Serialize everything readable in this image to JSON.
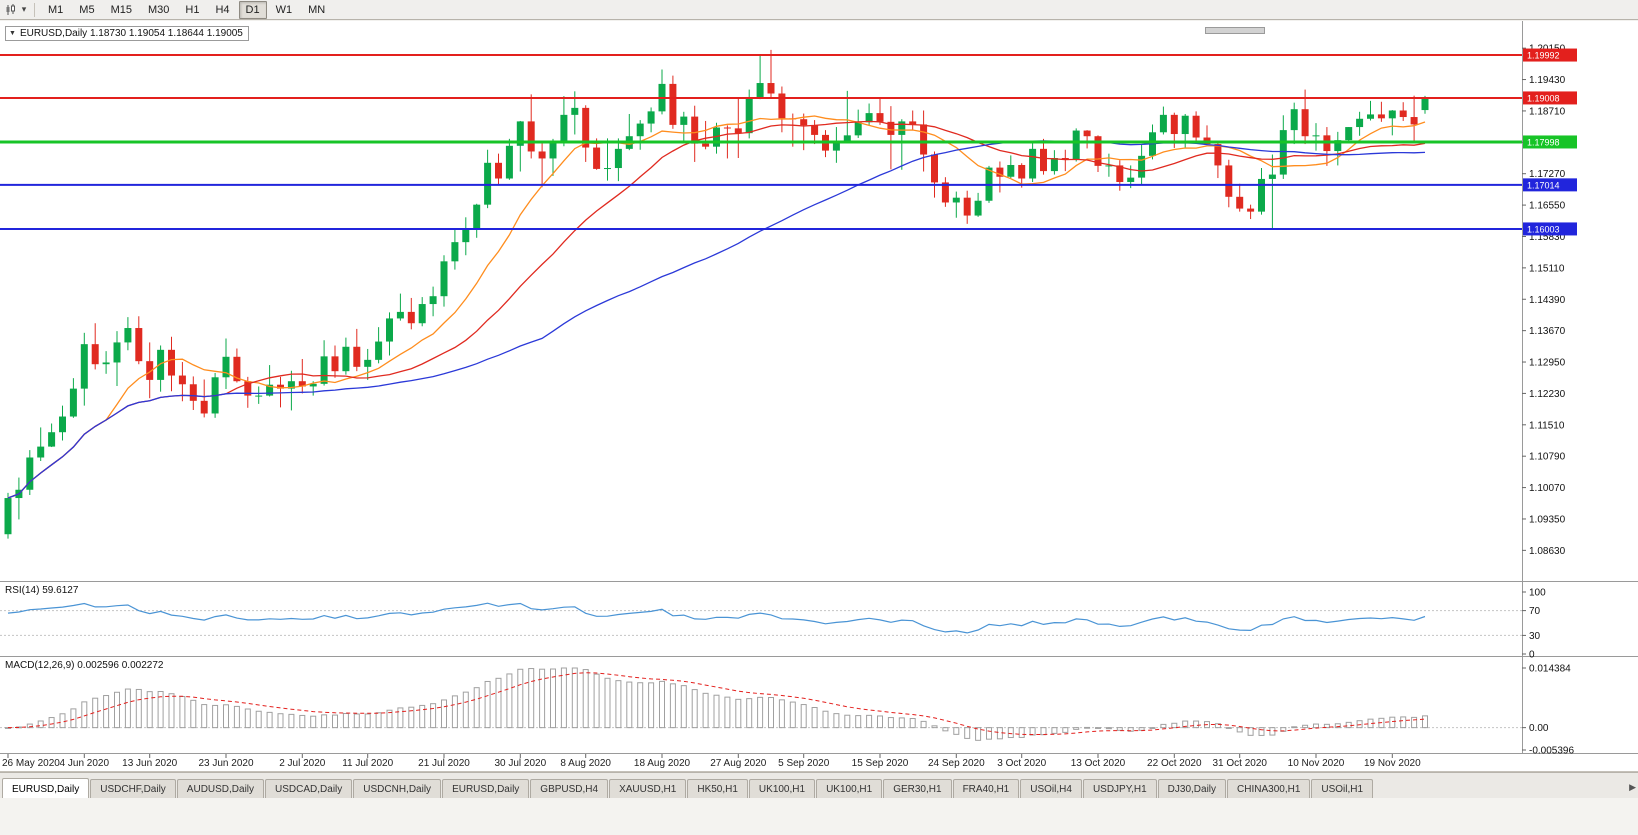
{
  "icons": {
    "collapse_triangle": "▼",
    "dropdown_caret": "▾",
    "tab_scroll_right": "▶"
  },
  "toolbar": {
    "timeframes": [
      "M1",
      "M5",
      "M15",
      "M30",
      "H1",
      "H4",
      "D1",
      "W1",
      "MN"
    ],
    "active_timeframe": "D1"
  },
  "chart_header": {
    "title": "EURUSD,Daily  1.18730 1.19054 1.18644 1.19005",
    "symbol": "EURUSD",
    "timeframe": "Daily",
    "open": "1.18730",
    "high": "1.19054",
    "low": "1.18644",
    "close": "1.19005"
  },
  "price_axis": {
    "ticks": [
      "1.20150",
      "1.19430",
      "1.18710",
      "1.17990",
      "1.17270",
      "1.16550",
      "1.15830",
      "1.15110",
      "1.14390",
      "1.13670",
      "1.12950",
      "1.12230",
      "1.11510",
      "1.10790",
      "1.10070",
      "1.09350",
      "1.08630"
    ]
  },
  "levels": [
    {
      "label": "1.19992",
      "price": 1.19992,
      "color": "#e3201d",
      "width": 2
    },
    {
      "label": "1.19008",
      "price": 1.19008,
      "color": "#e3201d",
      "width": 2
    },
    {
      "label": "1.17998",
      "price": 1.17998,
      "color": "#17c427",
      "width": 3
    },
    {
      "label": "1.17014",
      "price": 1.17014,
      "color": "#2125dc",
      "width": 2
    },
    {
      "label": "1.16003",
      "price": 1.16003,
      "color": "#2125dc",
      "width": 2
    }
  ],
  "rsi_panel": {
    "label": "RSI(14) 59.6127",
    "period": 14,
    "current": 59.6127,
    "color": "#4a94d5",
    "level_labels": [
      "100",
      "70",
      "30",
      "0"
    ],
    "level_values": [
      100,
      70,
      30,
      0
    ],
    "dashed_levels": [
      70,
      30
    ]
  },
  "macd_panel": {
    "label": "MACD(12,26,9) 0.002596 0.002272",
    "fast": 12,
    "slow": 26,
    "signal_period": 9,
    "macd_current": 0.002596,
    "signal_current": 0.002272,
    "scale_labels": [
      "0.014384",
      "0.00",
      "-0.005396"
    ],
    "scale_values": [
      0.014384,
      0,
      -0.005396
    ],
    "bar_color": "#a0a0a0",
    "signal_color": "#e3201d"
  },
  "time_axis": {
    "labels": [
      {
        "t": "26 May 2020",
        "i": 0
      },
      {
        "t": "4 Jun 2020",
        "i": 7
      },
      {
        "t": "13 Jun 2020",
        "i": 13
      },
      {
        "t": "23 Jun 2020",
        "i": 20
      },
      {
        "t": "2 Jul 2020",
        "i": 27
      },
      {
        "t": "11 Jul 2020",
        "i": 33
      },
      {
        "t": "21 Jul 2020",
        "i": 40
      },
      {
        "t": "30 Jul 2020",
        "i": 47
      },
      {
        "t": "8 Aug 2020",
        "i": 53
      },
      {
        "t": "18 Aug 2020",
        "i": 60
      },
      {
        "t": "27 Aug 2020",
        "i": 67
      },
      {
        "t": "5 Sep 2020",
        "i": 73
      },
      {
        "t": "15 Sep 2020",
        "i": 80
      },
      {
        "t": "24 Sep 2020",
        "i": 87
      },
      {
        "t": "3 Oct 2020",
        "i": 93
      },
      {
        "t": "13 Oct 2020",
        "i": 100
      },
      {
        "t": "22 Oct 2020",
        "i": 107
      },
      {
        "t": "31 Oct 2020",
        "i": 113
      },
      {
        "t": "10 Nov 2020",
        "i": 120
      },
      {
        "t": "19 Nov 2020",
        "i": 127
      }
    ]
  },
  "tabs": {
    "items": [
      {
        "label": "EURUSD,Daily",
        "active": true
      },
      {
        "label": "USDCHF,Daily",
        "active": false
      },
      {
        "label": "AUDUSD,Daily",
        "active": false
      },
      {
        "label": "USDCAD,Daily",
        "active": false
      },
      {
        "label": "USDCNH,Daily",
        "active": false
      },
      {
        "label": "EURUSD,Daily",
        "active": false
      },
      {
        "label": "GBPUSD,H4",
        "active": false
      },
      {
        "label": "XAUUSD,H1",
        "active": false
      },
      {
        "label": "HK50,H1",
        "active": false
      },
      {
        "label": "UK100,H1",
        "active": false
      },
      {
        "label": "UK100,H1",
        "active": false
      },
      {
        "label": "GER30,H1",
        "active": false
      },
      {
        "label": "FRA40,H1",
        "active": false
      },
      {
        "label": "USOil,H4",
        "active": false
      },
      {
        "label": "USDJPY,H1",
        "active": false
      },
      {
        "label": "DJ30,Daily",
        "active": false
      },
      {
        "label": "CHINA300,H1",
        "active": false
      },
      {
        "label": "USOil,H1",
        "active": false
      }
    ]
  },
  "chart_data": {
    "type": "candlestick",
    "symbol": "EURUSD",
    "timeframe": "Daily",
    "y_range": [
      1.0795,
      1.2075
    ],
    "up_color": "#0ba94a",
    "down_color": "#e02a20",
    "moving_averages": [
      {
        "name": "ma-fast",
        "period": 10,
        "color": "#ff8d1e"
      },
      {
        "name": "ma-mid",
        "period": 21,
        "color": "#e02a20"
      },
      {
        "name": "ma-slow",
        "period": 50,
        "color": "#2b39d8"
      }
    ],
    "ohlc": [
      [
        1.09,
        1.0995,
        1.089,
        1.0983
      ],
      [
        1.0983,
        1.103,
        1.0934,
        1.1002
      ],
      [
        1.1002,
        1.1093,
        1.099,
        1.1076
      ],
      [
        1.1076,
        1.1145,
        1.1068,
        1.1101
      ],
      [
        1.1101,
        1.1154,
        1.11,
        1.1134
      ],
      [
        1.1134,
        1.1195,
        1.1115,
        1.117
      ],
      [
        1.117,
        1.1258,
        1.1167,
        1.1234
      ],
      [
        1.1234,
        1.1362,
        1.1195,
        1.1336
      ],
      [
        1.1336,
        1.1384,
        1.1278,
        1.129
      ],
      [
        1.129,
        1.132,
        1.1268,
        1.1294
      ],
      [
        1.1294,
        1.1366,
        1.124,
        1.134
      ],
      [
        1.134,
        1.1398,
        1.1322,
        1.1373
      ],
      [
        1.1373,
        1.14,
        1.129,
        1.1297
      ],
      [
        1.1297,
        1.134,
        1.1212,
        1.1254
      ],
      [
        1.1254,
        1.1333,
        1.1227,
        1.1323
      ],
      [
        1.1323,
        1.1353,
        1.1228,
        1.1264
      ],
      [
        1.1264,
        1.1295,
        1.1205,
        1.1244
      ],
      [
        1.1244,
        1.1262,
        1.1185,
        1.1206
      ],
      [
        1.1206,
        1.1255,
        1.1168,
        1.1177
      ],
      [
        1.1177,
        1.127,
        1.1167,
        1.126
      ],
      [
        1.126,
        1.1349,
        1.1233,
        1.1307
      ],
      [
        1.1307,
        1.1326,
        1.1248,
        1.1251
      ],
      [
        1.1251,
        1.1261,
        1.119,
        1.1218
      ],
      [
        1.1218,
        1.1239,
        1.1199,
        1.1218
      ],
      [
        1.1218,
        1.1288,
        1.1216,
        1.1243
      ],
      [
        1.1243,
        1.1261,
        1.1191,
        1.1234
      ],
      [
        1.1234,
        1.1275,
        1.1184,
        1.1251
      ],
      [
        1.1251,
        1.1302,
        1.1223,
        1.1239
      ],
      [
        1.1239,
        1.1251,
        1.1218,
        1.1245
      ],
      [
        1.1245,
        1.1345,
        1.1241,
        1.1308
      ],
      [
        1.1308,
        1.1333,
        1.1259,
        1.1274
      ],
      [
        1.1274,
        1.1351,
        1.1266,
        1.133
      ],
      [
        1.133,
        1.1371,
        1.1274,
        1.1284
      ],
      [
        1.1284,
        1.1325,
        1.1254,
        1.13
      ],
      [
        1.13,
        1.1375,
        1.1292,
        1.1342
      ],
      [
        1.1342,
        1.1409,
        1.131,
        1.1395
      ],
      [
        1.1395,
        1.1452,
        1.139,
        1.141
      ],
      [
        1.141,
        1.1442,
        1.137,
        1.1384
      ],
      [
        1.1384,
        1.1444,
        1.1377,
        1.1428
      ],
      [
        1.1428,
        1.1468,
        1.14,
        1.1446
      ],
      [
        1.1446,
        1.154,
        1.1422,
        1.1526
      ],
      [
        1.1526,
        1.1601,
        1.1507,
        1.157
      ],
      [
        1.157,
        1.1627,
        1.154,
        1.1598
      ],
      [
        1.1598,
        1.1658,
        1.158,
        1.1656
      ],
      [
        1.1656,
        1.1782,
        1.1648,
        1.1752
      ],
      [
        1.1752,
        1.1773,
        1.17,
        1.1716
      ],
      [
        1.1716,
        1.1807,
        1.1713,
        1.1791
      ],
      [
        1.1791,
        1.1848,
        1.1732,
        1.1847
      ],
      [
        1.1847,
        1.1909,
        1.1762,
        1.1778
      ],
      [
        1.1778,
        1.1797,
        1.1696,
        1.1762
      ],
      [
        1.1762,
        1.1807,
        1.1722,
        1.1803
      ],
      [
        1.1803,
        1.1905,
        1.179,
        1.1862
      ],
      [
        1.1862,
        1.1916,
        1.1817,
        1.1878
      ],
      [
        1.1878,
        1.1884,
        1.1754,
        1.1787
      ],
      [
        1.1787,
        1.1808,
        1.1736,
        1.1738
      ],
      [
        1.1738,
        1.1808,
        1.1711,
        1.174
      ],
      [
        1.174,
        1.1808,
        1.171,
        1.1784
      ],
      [
        1.1784,
        1.1864,
        1.1781,
        1.1813
      ],
      [
        1.1813,
        1.185,
        1.1782,
        1.1842
      ],
      [
        1.1842,
        1.1879,
        1.1822,
        1.187
      ],
      [
        1.187,
        1.1966,
        1.1863,
        1.1933
      ],
      [
        1.1933,
        1.1952,
        1.183,
        1.1839
      ],
      [
        1.1839,
        1.1869,
        1.1801,
        1.1858
      ],
      [
        1.1858,
        1.1883,
        1.1754,
        1.1796
      ],
      [
        1.1796,
        1.1848,
        1.1783,
        1.1789
      ],
      [
        1.1789,
        1.1844,
        1.1773,
        1.1833
      ],
      [
        1.1833,
        1.1838,
        1.1762,
        1.1831
      ],
      [
        1.1831,
        1.1901,
        1.1763,
        1.182
      ],
      [
        1.182,
        1.192,
        1.1808,
        1.1903
      ],
      [
        1.1903,
        1.1997,
        1.1898,
        1.1935
      ],
      [
        1.1935,
        1.2011,
        1.1899,
        1.1911
      ],
      [
        1.1911,
        1.1927,
        1.1822,
        1.1854
      ],
      [
        1.1854,
        1.1865,
        1.1789,
        1.1852
      ],
      [
        1.1852,
        1.1865,
        1.1781,
        1.1838
      ],
      [
        1.1838,
        1.185,
        1.1795,
        1.1816
      ],
      [
        1.1816,
        1.1827,
        1.1765,
        1.178
      ],
      [
        1.178,
        1.1834,
        1.1752,
        1.1801
      ],
      [
        1.1801,
        1.1917,
        1.1799,
        1.1815
      ],
      [
        1.1815,
        1.1874,
        1.1809,
        1.1845
      ],
      [
        1.1845,
        1.1888,
        1.1838,
        1.1866
      ],
      [
        1.1866,
        1.1899,
        1.1839,
        1.1846
      ],
      [
        1.1846,
        1.1882,
        1.1737,
        1.1816
      ],
      [
        1.1816,
        1.1852,
        1.1736,
        1.1847
      ],
      [
        1.1847,
        1.1872,
        1.1827,
        1.184
      ],
      [
        1.184,
        1.1872,
        1.1732,
        1.1771
      ],
      [
        1.1771,
        1.1778,
        1.1672,
        1.1707
      ],
      [
        1.1707,
        1.1719,
        1.1651,
        1.1661
      ],
      [
        1.1661,
        1.1686,
        1.1626,
        1.1672
      ],
      [
        1.1672,
        1.1688,
        1.1612,
        1.1631
      ],
      [
        1.1631,
        1.1683,
        1.1628,
        1.1665
      ],
      [
        1.1665,
        1.1745,
        1.166,
        1.1741
      ],
      [
        1.1741,
        1.1755,
        1.1684,
        1.172
      ],
      [
        1.172,
        1.1769,
        1.1717,
        1.1747
      ],
      [
        1.1747,
        1.1751,
        1.1695,
        1.1716
      ],
      [
        1.1716,
        1.1797,
        1.1708,
        1.1784
      ],
      [
        1.1784,
        1.1807,
        1.1725,
        1.1733
      ],
      [
        1.1733,
        1.1781,
        1.1725,
        1.1763
      ],
      [
        1.1763,
        1.1782,
        1.1733,
        1.176
      ],
      [
        1.176,
        1.1831,
        1.1755,
        1.1826
      ],
      [
        1.1826,
        1.1827,
        1.1785,
        1.1813
      ],
      [
        1.1813,
        1.1815,
        1.1731,
        1.1745
      ],
      [
        1.1745,
        1.1773,
        1.172,
        1.1746
      ],
      [
        1.1746,
        1.1758,
        1.1688,
        1.1708
      ],
      [
        1.1708,
        1.1746,
        1.1694,
        1.1718
      ],
      [
        1.1718,
        1.1794,
        1.1702,
        1.1768
      ],
      [
        1.1768,
        1.184,
        1.176,
        1.1822
      ],
      [
        1.1822,
        1.1881,
        1.1817,
        1.1862
      ],
      [
        1.1862,
        1.1867,
        1.1786,
        1.1818
      ],
      [
        1.1818,
        1.1864,
        1.1786,
        1.186
      ],
      [
        1.186,
        1.187,
        1.1803,
        1.181
      ],
      [
        1.181,
        1.1838,
        1.1793,
        1.1795
      ],
      [
        1.1795,
        1.18,
        1.1717,
        1.1746
      ],
      [
        1.1746,
        1.1759,
        1.165,
        1.1674
      ],
      [
        1.1674,
        1.1704,
        1.164,
        1.1647
      ],
      [
        1.1647,
        1.1656,
        1.1623,
        1.164
      ],
      [
        1.164,
        1.174,
        1.1633,
        1.1715
      ],
      [
        1.1715,
        1.1771,
        1.1602,
        1.1725
      ],
      [
        1.1725,
        1.1861,
        1.1715,
        1.1827
      ],
      [
        1.1827,
        1.189,
        1.1795,
        1.1875
      ],
      [
        1.1875,
        1.192,
        1.1795,
        1.1813
      ],
      [
        1.1813,
        1.1843,
        1.178,
        1.1815
      ],
      [
        1.1815,
        1.1834,
        1.1745,
        1.1779
      ],
      [
        1.1779,
        1.1823,
        1.1746,
        1.1804
      ],
      [
        1.1804,
        1.1834,
        1.1799,
        1.1834
      ],
      [
        1.1834,
        1.1869,
        1.1814,
        1.1853
      ],
      [
        1.1853,
        1.1894,
        1.1849,
        1.1863
      ],
      [
        1.1863,
        1.1892,
        1.1846,
        1.1854
      ],
      [
        1.1854,
        1.1873,
        1.1815,
        1.1872
      ],
      [
        1.1872,
        1.1891,
        1.1848,
        1.1857
      ],
      [
        1.1857,
        1.1906,
        1.18,
        1.184
      ],
      [
        1.1873,
        1.19054,
        1.18644,
        1.19005
      ]
    ]
  }
}
